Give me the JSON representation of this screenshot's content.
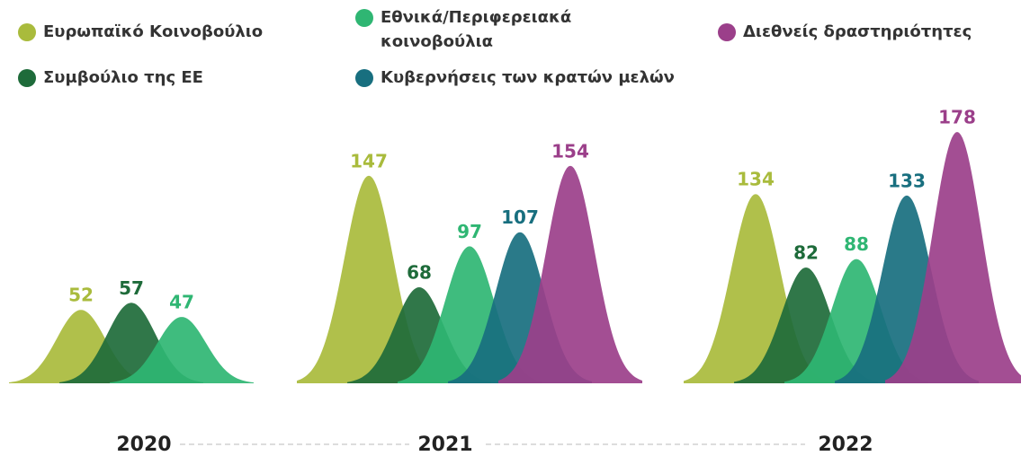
{
  "chart_data": {
    "type": "peak",
    "categories": [
      "2020",
      "2021",
      "2022"
    ],
    "series": [
      {
        "name": "Ευρωπαϊκό Κοινοβούλιο",
        "color": "#a9bb3c",
        "values": [
          52,
          147,
          134
        ]
      },
      {
        "name": "Συμβούλιο της ΕΕ",
        "color": "#1e6b3a",
        "values": [
          57,
          68,
          82
        ]
      },
      {
        "name": "Εθνικά/Περιφερειακά κοινοβούλια",
        "color": "#2fb673",
        "values": [
          47,
          97,
          88
        ]
      },
      {
        "name": "Κυβερνήσεις των κρατών μελών",
        "color": "#186f7f",
        "values": [
          null,
          107,
          133
        ]
      },
      {
        "name": "Διεθνείς δραστηριότητες",
        "color": "#9b3f8a",
        "values": [
          null,
          154,
          178
        ]
      }
    ]
  }
}
